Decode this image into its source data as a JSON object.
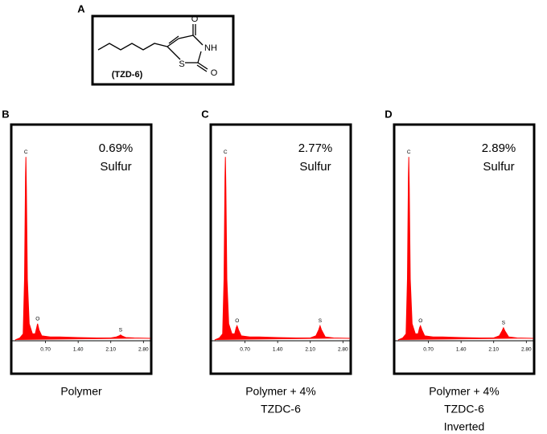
{
  "structure": {
    "label": "A",
    "atoms": [
      "O",
      "NH",
      "S",
      "O"
    ],
    "name": "(TZD-6)"
  },
  "chart_data": [
    {
      "type": "area",
      "panel_label": "B",
      "annotation": [
        "0.69%",
        "Sulfur"
      ],
      "caption": [
        "Polymer"
      ],
      "color": "#ff0000",
      "xlim": [
        0,
        2.95
      ],
      "ylim": [
        0,
        100
      ],
      "xticks": [
        {
          "value": 0.7,
          "label": "0.70"
        },
        {
          "value": 1.4,
          "label": "1.40"
        },
        {
          "value": 2.1,
          "label": "2.10"
        },
        {
          "value": 2.8,
          "label": "2.80"
        }
      ],
      "peaks": [
        {
          "label": "C",
          "x": 0.28
        },
        {
          "label": "O",
          "x": 0.53
        },
        {
          "label": "S",
          "x": 2.31
        }
      ],
      "x": [
        0.05,
        0.15,
        0.22,
        0.25,
        0.27,
        0.28,
        0.29,
        0.31,
        0.35,
        0.42,
        0.48,
        0.51,
        0.53,
        0.56,
        0.62,
        0.8,
        1.0,
        1.4,
        1.8,
        2.1,
        2.22,
        2.28,
        2.31,
        2.34,
        2.42,
        2.6,
        2.95
      ],
      "values": [
        0,
        1,
        3,
        30,
        80,
        90,
        75,
        30,
        8,
        3,
        3,
        6,
        8,
        5,
        2,
        1.5,
        1.5,
        1.2,
        1,
        1,
        1.5,
        2,
        2.5,
        2,
        1.2,
        1,
        0.8
      ]
    },
    {
      "type": "area",
      "panel_label": "C",
      "annotation": [
        "2.77%",
        "Sulfur"
      ],
      "caption": [
        "Polymer + 4%",
        "TZDC-6"
      ],
      "color": "#ff0000",
      "xlim": [
        0,
        2.95
      ],
      "ylim": [
        0,
        100
      ],
      "xticks": [
        {
          "value": 0.7,
          "label": "0.70"
        },
        {
          "value": 1.4,
          "label": "1.40"
        },
        {
          "value": 2.1,
          "label": "2.10"
        },
        {
          "value": 2.8,
          "label": "2.80"
        }
      ],
      "peaks": [
        {
          "label": "C",
          "x": 0.28
        },
        {
          "label": "O",
          "x": 0.53
        },
        {
          "label": "S",
          "x": 2.31
        }
      ],
      "x": [
        0.05,
        0.15,
        0.22,
        0.25,
        0.27,
        0.28,
        0.29,
        0.31,
        0.35,
        0.42,
        0.48,
        0.51,
        0.53,
        0.56,
        0.62,
        0.8,
        1.0,
        1.4,
        1.8,
        2.1,
        2.22,
        2.28,
        2.31,
        2.34,
        2.42,
        2.6,
        2.95
      ],
      "values": [
        0,
        1,
        3,
        30,
        80,
        90,
        75,
        30,
        8,
        3,
        3,
        6,
        7,
        5,
        2,
        1.5,
        1.5,
        1.2,
        1,
        1,
        2,
        5,
        7,
        5,
        1.5,
        1,
        0.8
      ]
    },
    {
      "type": "area",
      "panel_label": "D",
      "annotation": [
        "2.89%",
        "Sulfur"
      ],
      "caption": [
        "Polymer + 4%",
        "TZDC-6",
        "Inverted"
      ],
      "color": "#ff0000",
      "xlim": [
        0,
        2.95
      ],
      "ylim": [
        0,
        100
      ],
      "xticks": [
        {
          "value": 0.7,
          "label": "0.70"
        },
        {
          "value": 1.4,
          "label": "1.40"
        },
        {
          "value": 2.1,
          "label": "2.10"
        },
        {
          "value": 2.8,
          "label": "2.80"
        }
      ],
      "peaks": [
        {
          "label": "C",
          "x": 0.28
        },
        {
          "label": "O",
          "x": 0.53
        },
        {
          "label": "S",
          "x": 2.31
        }
      ],
      "x": [
        0.05,
        0.15,
        0.22,
        0.25,
        0.27,
        0.28,
        0.29,
        0.31,
        0.35,
        0.42,
        0.48,
        0.51,
        0.53,
        0.56,
        0.62,
        0.8,
        1.0,
        1.4,
        1.8,
        2.1,
        2.22,
        2.28,
        2.31,
        2.34,
        2.42,
        2.6,
        2.95
      ],
      "values": [
        0,
        1,
        3,
        30,
        80,
        90,
        75,
        30,
        8,
        3,
        3,
        6,
        7,
        5,
        2,
        1.5,
        1.5,
        1.2,
        1,
        1,
        2,
        4.5,
        6,
        4.5,
        1.5,
        1,
        0.8
      ]
    }
  ]
}
